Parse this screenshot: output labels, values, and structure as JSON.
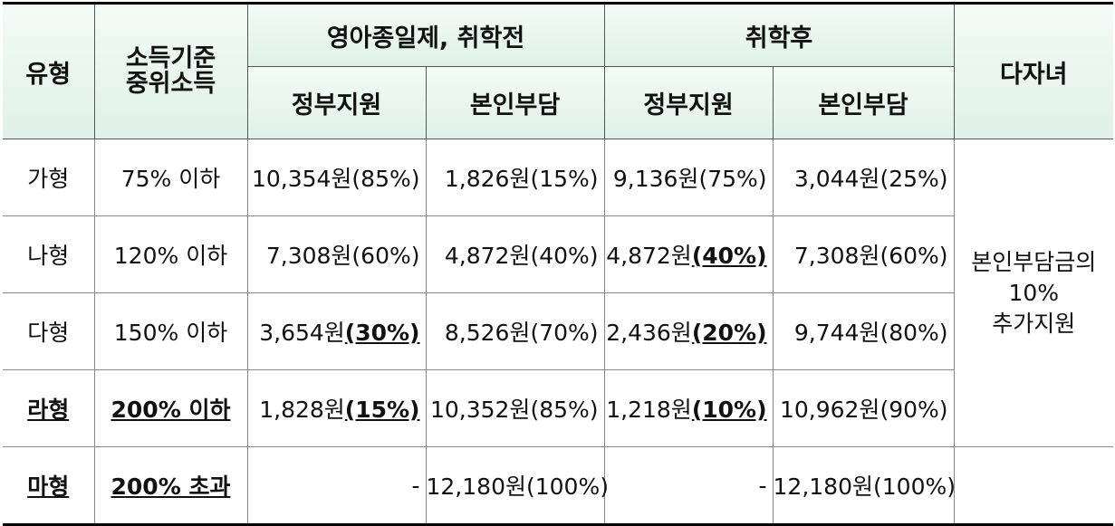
{
  "header": {
    "type": "유형",
    "income_line1": "소득기준",
    "income_line2": "중위소득",
    "group1": "영아종일제, 취학전",
    "group2": "취학후",
    "multi_child": "다자녀",
    "gov_support": "정부지원",
    "self_pay": "본인부담"
  },
  "rows": [
    {
      "type": "가형",
      "income": "75% 이하",
      "g1_gov_amt": "10,354원",
      "g1_gov_pct": "(85%)",
      "g1_self_amt": "1,826원",
      "g1_self_pct": "(15%)",
      "g2_gov_amt": "9,136원",
      "g2_gov_pct": "(75%)",
      "g2_self_amt": "3,044원",
      "g2_self_pct": "(25%)"
    },
    {
      "type": "나형",
      "income": "120% 이하",
      "g1_gov_amt": "7,308원",
      "g1_gov_pct": "(60%)",
      "g1_self_amt": "4,872원",
      "g1_self_pct": "(40%)",
      "g2_gov_amt": "4,872원",
      "g2_gov_pct": "(40%)",
      "g2_self_amt": "7,308원",
      "g2_self_pct": "(60%)"
    },
    {
      "type": "다형",
      "income": "150% 이하",
      "g1_gov_amt": "3,654원",
      "g1_gov_pct": "(30%)",
      "g1_self_amt": "8,526원",
      "g1_self_pct": "(70%)",
      "g2_gov_amt": "2,436원",
      "g2_gov_pct": "(20%)",
      "g2_self_amt": "9,744원",
      "g2_self_pct": "(80%)"
    },
    {
      "type": "라형",
      "income": "200% 이하",
      "g1_gov_amt": "1,828원",
      "g1_gov_pct": "(15%)",
      "g1_self_amt": "10,352원",
      "g1_self_pct": "(85%)",
      "g2_gov_amt": "1,218원",
      "g2_gov_pct": "(10%)",
      "g2_self_amt": "10,962원",
      "g2_self_pct": "(90%)"
    },
    {
      "type": "마형",
      "income": "200% 초과",
      "g1_gov": "-",
      "g1_self_amt": "12,180원",
      "g1_self_pct": "(100%)",
      "g2_gov": "-",
      "g2_self_amt": "12,180원",
      "g2_self_pct": "(100%)"
    }
  ],
  "multi_child_note": {
    "line1": "본인부담금의",
    "line2": "10%",
    "line3": "추가지원"
  },
  "colors": {
    "header_bg": "#e4f3ec",
    "border": "#000000"
  }
}
